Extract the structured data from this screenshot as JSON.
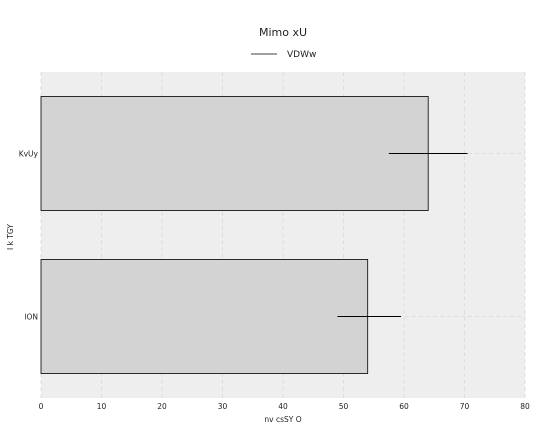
{
  "chart_data": {
    "type": "bar",
    "orientation": "horizontal",
    "title": "Mimo  xU",
    "xlabel": "nv csSY O",
    "ylabel": "I k  TGY",
    "categories": [
      "KvUy",
      "lON"
    ],
    "series": [
      {
        "name": "VDWw",
        "values": [
          64,
          54
        ],
        "error_range": [
          [
            57.5,
            70.5
          ],
          [
            49,
            59.5
          ]
        ]
      }
    ],
    "xlim": [
      0,
      80
    ],
    "xticks": [
      0,
      10,
      20,
      30,
      40,
      50,
      60,
      70,
      80
    ],
    "grid": true,
    "legend_position": "top-center",
    "colors": {
      "bar_fill": "#d3d3d3",
      "bar_edge": "#000000",
      "plot_background": "#eeeeee",
      "grid": "#dddddd",
      "error_line": "#000000"
    }
  }
}
